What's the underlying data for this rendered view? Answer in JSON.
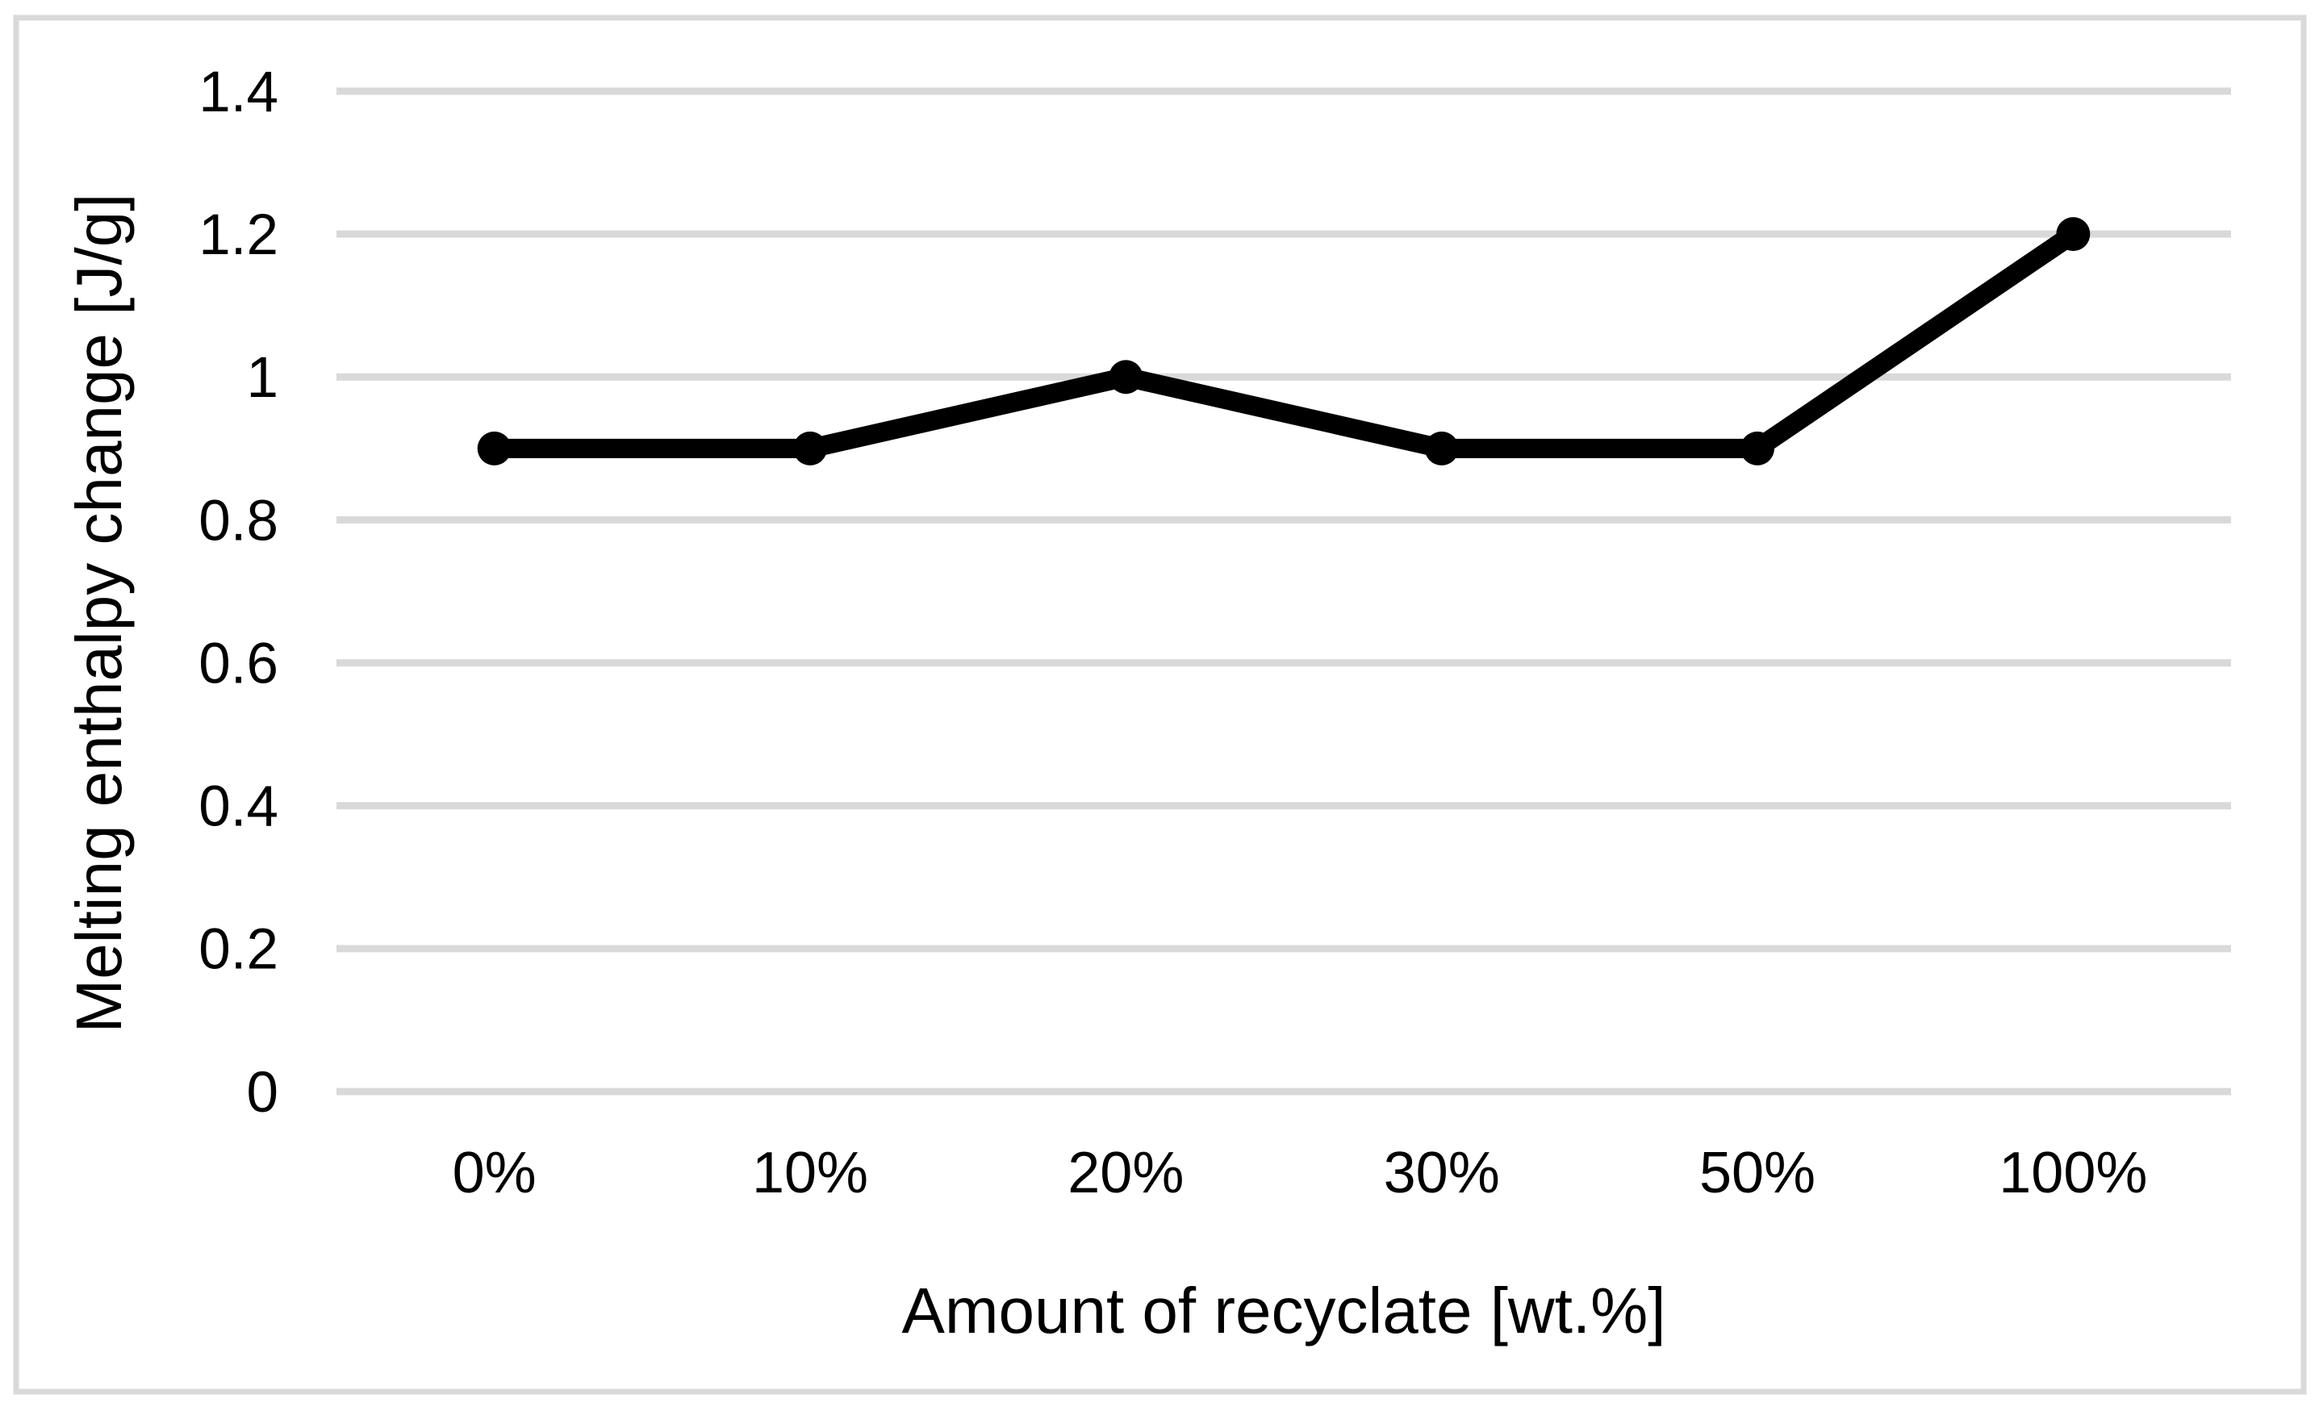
{
  "chart_data": {
    "type": "line",
    "title": "",
    "categories": [
      "0%",
      "10%",
      "20%",
      "30%",
      "50%",
      "100%"
    ],
    "series": [
      {
        "name": "Melting enthalpy change",
        "values": [
          0.9,
          0.9,
          1.0,
          0.9,
          0.9,
          1.2
        ]
      }
    ],
    "xlabel": "Amount of recyclate [wt.%]",
    "ylabel": "Melting enthalpy change [J/g]",
    "ylim": [
      0,
      1.4
    ],
    "ytick_step": 0.2,
    "ytick_labels": [
      "0",
      "0.2",
      "0.4",
      "0.6",
      "0.8",
      "1",
      "1.2",
      "1.4"
    ],
    "grid": "horizontal",
    "legend_position": "none",
    "colors": {
      "line": "#000000",
      "marker": "#000000",
      "gridline": "#d9d9d9",
      "frame_border": "#d9d9d9",
      "text": "#000000",
      "background": "#ffffff"
    },
    "marker_style": "circle"
  }
}
